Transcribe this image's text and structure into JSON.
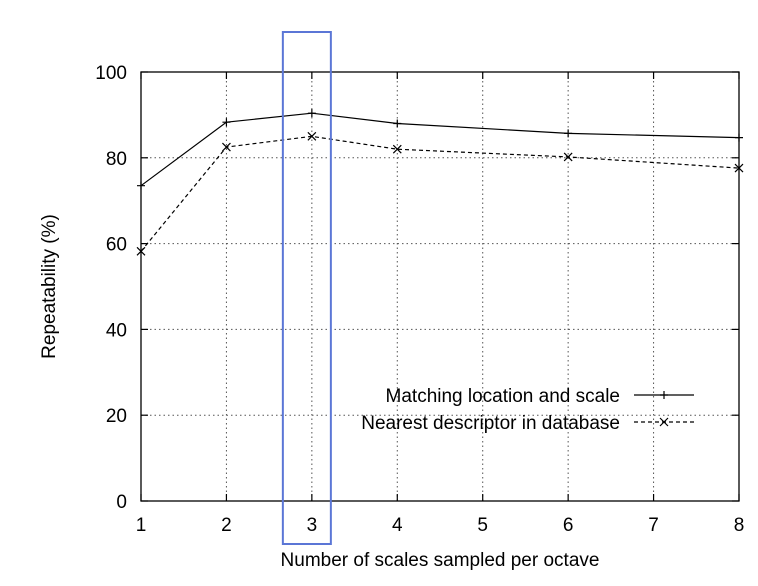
{
  "chart_data": {
    "type": "line",
    "title": "",
    "xlabel": "Number of scales sampled per octave",
    "ylabel": "Repeatability (%)",
    "x": [
      1,
      2,
      3,
      4,
      5,
      6,
      7,
      8
    ],
    "xlim": [
      1,
      8
    ],
    "ylim": [
      0,
      100
    ],
    "xticks": [
      "1",
      "2",
      "3",
      "4",
      "5",
      "6",
      "7",
      "8"
    ],
    "yticks": [
      "0",
      "20",
      "40",
      "60",
      "80",
      "100"
    ],
    "grid": true,
    "legend_position": "bottom-right",
    "highlight": {
      "x": 3,
      "color": "#5b76d6"
    },
    "series": [
      {
        "name": "Matching location and scale",
        "style": "solid",
        "marker": "+",
        "color": "#000000",
        "points": [
          [
            1,
            73.5
          ],
          [
            2,
            88.3
          ],
          [
            3,
            90.4
          ],
          [
            4,
            88.0
          ],
          [
            6,
            85.7
          ],
          [
            8,
            84.7
          ]
        ]
      },
      {
        "name": "Nearest descriptor in database",
        "style": "dashed",
        "marker": "x",
        "color": "#000000",
        "points": [
          [
            1,
            58.2
          ],
          [
            2,
            82.5
          ],
          [
            3,
            85.0
          ],
          [
            4,
            82.0
          ],
          [
            6,
            80.2
          ],
          [
            8,
            77.6
          ]
        ]
      }
    ]
  }
}
